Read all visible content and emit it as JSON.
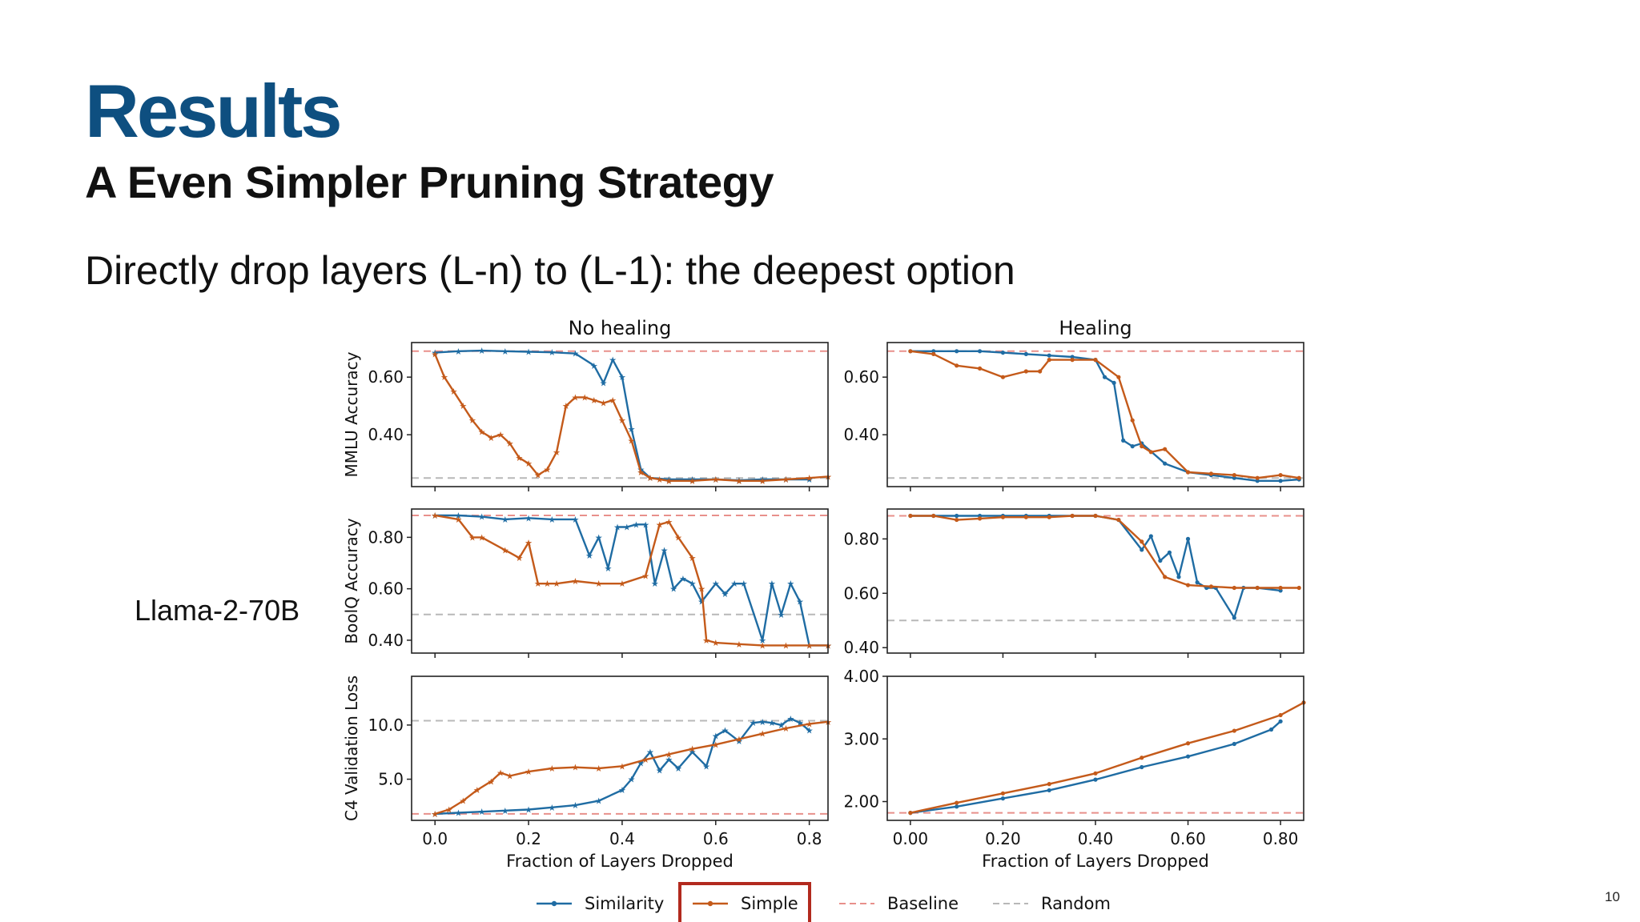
{
  "slide": {
    "title": "Results",
    "subtitle": "A Even Simpler Pruning Strategy",
    "bullet": "Directly drop layers (L-n) to (L-1): the deepest option",
    "model_label": "Llama-2-70B",
    "page_number": "10"
  },
  "colors": {
    "title": "#0e4f80",
    "similarity": "#1f6ca3",
    "simple": "#c45a1a",
    "baseline": "#e8908b",
    "random": "#b8b8b8",
    "highlight_box": "#b22a1e"
  },
  "chart_data": {
    "type": "line",
    "column_titles": [
      "No healing",
      "Healing"
    ],
    "row_ylabels": [
      "MMLU Accuracy",
      "BoolQ Accuracy",
      "C4 Validation Loss"
    ],
    "xlabel": "Fraction of Layers Dropped",
    "legend": [
      {
        "label": "Similarity",
        "style": "solid-marker",
        "color": "#1f6ca3"
      },
      {
        "label": "Simple",
        "style": "solid-marker",
        "color": "#c45a1a",
        "highlighted": true
      },
      {
        "label": "Baseline",
        "style": "dashed",
        "color": "#e8908b"
      },
      {
        "label": "Random",
        "style": "dashed",
        "color": "#b8b8b8"
      }
    ],
    "panels": [
      {
        "id": "mmlu-no-healing",
        "row": 0,
        "col": 0,
        "marker": "star",
        "xlim": [
          -0.05,
          0.84
        ],
        "ylim": [
          0.22,
          0.72
        ],
        "xticks": [
          0.0,
          0.2,
          0.4,
          0.6,
          0.8
        ],
        "xtick_labels": [
          "0.0",
          "0.2",
          "0.4",
          "0.6",
          "0.8"
        ],
        "yticks": [
          0.4,
          0.6
        ],
        "ytick_labels": [
          "0.40",
          "0.60"
        ],
        "baseline": 0.69,
        "random": 0.25,
        "series": [
          {
            "name": "Similarity",
            "x": [
              0.0,
              0.05,
              0.1,
              0.15,
              0.2,
              0.25,
              0.3,
              0.34,
              0.36,
              0.38,
              0.4,
              0.42,
              0.44,
              0.46,
              0.5,
              0.55,
              0.6,
              0.65,
              0.7,
              0.75,
              0.8
            ],
            "y": [
              0.685,
              0.69,
              0.692,
              0.69,
              0.688,
              0.686,
              0.682,
              0.64,
              0.58,
              0.66,
              0.6,
              0.42,
              0.28,
              0.25,
              0.245,
              0.245,
              0.245,
              0.242,
              0.245,
              0.245,
              0.245
            ]
          },
          {
            "name": "Simple",
            "x": [
              0.0,
              0.02,
              0.04,
              0.06,
              0.08,
              0.1,
              0.12,
              0.14,
              0.16,
              0.18,
              0.2,
              0.22,
              0.24,
              0.26,
              0.28,
              0.3,
              0.32,
              0.34,
              0.36,
              0.38,
              0.4,
              0.42,
              0.44,
              0.46,
              0.48,
              0.5,
              0.55,
              0.6,
              0.65,
              0.7,
              0.75,
              0.8,
              0.84
            ],
            "y": [
              0.68,
              0.6,
              0.55,
              0.5,
              0.45,
              0.41,
              0.39,
              0.4,
              0.37,
              0.32,
              0.3,
              0.26,
              0.28,
              0.34,
              0.5,
              0.53,
              0.53,
              0.52,
              0.51,
              0.52,
              0.45,
              0.38,
              0.27,
              0.25,
              0.245,
              0.24,
              0.24,
              0.245,
              0.24,
              0.24,
              0.245,
              0.25,
              0.255
            ]
          }
        ]
      },
      {
        "id": "mmlu-healing",
        "row": 0,
        "col": 1,
        "marker": "dot",
        "xlim": [
          -0.05,
          0.85
        ],
        "ylim": [
          0.22,
          0.72
        ],
        "xticks": [
          0.0,
          0.2,
          0.4,
          0.6,
          0.8
        ],
        "xtick_labels": [
          "0.00",
          "0.20",
          "0.40",
          "0.60",
          "0.80"
        ],
        "yticks": [
          0.4,
          0.6
        ],
        "ytick_labels": [
          "0.40",
          "0.60"
        ],
        "baseline": 0.69,
        "random": 0.25,
        "series": [
          {
            "name": "Similarity",
            "x": [
              0.0,
              0.05,
              0.1,
              0.15,
              0.2,
              0.25,
              0.3,
              0.35,
              0.4,
              0.42,
              0.44,
              0.46,
              0.48,
              0.5,
              0.55,
              0.6,
              0.65,
              0.7,
              0.75,
              0.8,
              0.84
            ],
            "y": [
              0.69,
              0.69,
              0.69,
              0.69,
              0.685,
              0.68,
              0.675,
              0.67,
              0.66,
              0.6,
              0.58,
              0.38,
              0.36,
              0.37,
              0.3,
              0.27,
              0.26,
              0.25,
              0.24,
              0.24,
              0.245
            ]
          },
          {
            "name": "Simple",
            "x": [
              0.0,
              0.05,
              0.1,
              0.15,
              0.2,
              0.25,
              0.28,
              0.3,
              0.35,
              0.4,
              0.45,
              0.48,
              0.5,
              0.52,
              0.55,
              0.6,
              0.65,
              0.7,
              0.75,
              0.8,
              0.84
            ],
            "y": [
              0.69,
              0.68,
              0.64,
              0.63,
              0.6,
              0.62,
              0.62,
              0.66,
              0.66,
              0.66,
              0.6,
              0.45,
              0.36,
              0.34,
              0.35,
              0.27,
              0.265,
              0.26,
              0.25,
              0.26,
              0.25
            ]
          }
        ]
      },
      {
        "id": "boolq-no-healing",
        "row": 1,
        "col": 0,
        "marker": "star",
        "xlim": [
          -0.05,
          0.84
        ],
        "ylim": [
          0.35,
          0.91
        ],
        "xticks": [
          0.0,
          0.2,
          0.4,
          0.6,
          0.8
        ],
        "xtick_labels": [
          "0.0",
          "0.2",
          "0.4",
          "0.6",
          "0.8"
        ],
        "yticks": [
          0.4,
          0.6,
          0.8
        ],
        "ytick_labels": [
          "0.40",
          "0.60",
          "0.80"
        ],
        "baseline": 0.885,
        "random": 0.5,
        "series": [
          {
            "name": "Similarity",
            "x": [
              0.0,
              0.05,
              0.1,
              0.15,
              0.2,
              0.25,
              0.3,
              0.33,
              0.35,
              0.37,
              0.39,
              0.41,
              0.43,
              0.45,
              0.47,
              0.49,
              0.51,
              0.53,
              0.55,
              0.57,
              0.6,
              0.62,
              0.64,
              0.66,
              0.7,
              0.72,
              0.74,
              0.76,
              0.78,
              0.8,
              0.84
            ],
            "y": [
              0.885,
              0.885,
              0.88,
              0.87,
              0.875,
              0.87,
              0.87,
              0.73,
              0.8,
              0.68,
              0.84,
              0.84,
              0.85,
              0.85,
              0.62,
              0.75,
              0.6,
              0.64,
              0.62,
              0.55,
              0.62,
              0.58,
              0.62,
              0.62,
              0.4,
              0.62,
              0.5,
              0.62,
              0.55,
              0.38,
              0.38
            ]
          },
          {
            "name": "Simple",
            "x": [
              0.0,
              0.05,
              0.08,
              0.1,
              0.15,
              0.18,
              0.2,
              0.22,
              0.24,
              0.26,
              0.3,
              0.35,
              0.4,
              0.45,
              0.48,
              0.5,
              0.52,
              0.55,
              0.57,
              0.58,
              0.6,
              0.65,
              0.7,
              0.75,
              0.8,
              0.84
            ],
            "y": [
              0.885,
              0.87,
              0.8,
              0.8,
              0.75,
              0.72,
              0.78,
              0.62,
              0.62,
              0.62,
              0.63,
              0.62,
              0.62,
              0.65,
              0.85,
              0.86,
              0.8,
              0.72,
              0.6,
              0.4,
              0.39,
              0.385,
              0.38,
              0.38,
              0.38,
              0.38
            ]
          }
        ]
      },
      {
        "id": "boolq-healing",
        "row": 1,
        "col": 1,
        "marker": "dot",
        "xlim": [
          -0.05,
          0.85
        ],
        "ylim": [
          0.38,
          0.91
        ],
        "xticks": [
          0.0,
          0.2,
          0.4,
          0.6,
          0.8
        ],
        "xtick_labels": [
          "0.00",
          "0.20",
          "0.40",
          "0.60",
          "0.80"
        ],
        "yticks": [
          0.4,
          0.6,
          0.8
        ],
        "ytick_labels": [
          "0.40",
          "0.60",
          "0.80"
        ],
        "baseline": 0.885,
        "random": 0.5,
        "series": [
          {
            "name": "Similarity",
            "x": [
              0.0,
              0.05,
              0.1,
              0.15,
              0.2,
              0.25,
              0.3,
              0.35,
              0.4,
              0.45,
              0.5,
              0.52,
              0.54,
              0.56,
              0.58,
              0.6,
              0.62,
              0.64,
              0.66,
              0.7,
              0.72,
              0.75,
              0.8
            ],
            "y": [
              0.885,
              0.885,
              0.885,
              0.885,
              0.885,
              0.885,
              0.885,
              0.885,
              0.885,
              0.87,
              0.76,
              0.81,
              0.72,
              0.75,
              0.66,
              0.8,
              0.64,
              0.62,
              0.62,
              0.51,
              0.62,
              0.62,
              0.61
            ]
          },
          {
            "name": "Simple",
            "x": [
              0.0,
              0.05,
              0.1,
              0.15,
              0.2,
              0.25,
              0.3,
              0.35,
              0.4,
              0.45,
              0.5,
              0.55,
              0.6,
              0.65,
              0.7,
              0.75,
              0.8,
              0.84
            ],
            "y": [
              0.885,
              0.885,
              0.87,
              0.875,
              0.88,
              0.88,
              0.88,
              0.885,
              0.885,
              0.87,
              0.79,
              0.66,
              0.63,
              0.625,
              0.62,
              0.62,
              0.62,
              0.62
            ]
          }
        ]
      },
      {
        "id": "c4-no-healing",
        "row": 2,
        "col": 0,
        "marker": "star",
        "xlim": [
          -0.05,
          0.84
        ],
        "ylim": [
          1.2,
          14.5
        ],
        "xticks": [
          0.0,
          0.2,
          0.4,
          0.6,
          0.8
        ],
        "xtick_labels": [
          "0.0",
          "0.2",
          "0.4",
          "0.6",
          "0.8"
        ],
        "yticks": [
          5.0,
          10.0
        ],
        "ytick_labels": [
          "5.0",
          "10.0"
        ],
        "baseline": 1.8,
        "random": 10.4,
        "series": [
          {
            "name": "Similarity",
            "x": [
              0.0,
              0.05,
              0.1,
              0.15,
              0.2,
              0.25,
              0.3,
              0.35,
              0.4,
              0.42,
              0.44,
              0.46,
              0.48,
              0.5,
              0.52,
              0.55,
              0.58,
              0.6,
              0.62,
              0.65,
              0.68,
              0.7,
              0.72,
              0.74,
              0.76,
              0.78,
              0.8
            ],
            "y": [
              1.8,
              1.9,
              2.0,
              2.1,
              2.2,
              2.4,
              2.6,
              3.0,
              4.0,
              5.0,
              6.5,
              7.5,
              5.8,
              6.8,
              6.0,
              7.5,
              6.2,
              9.0,
              9.5,
              8.5,
              10.2,
              10.3,
              10.2,
              10.0,
              10.6,
              10.2,
              9.5
            ]
          },
          {
            "name": "Simple",
            "x": [
              0.0,
              0.03,
              0.06,
              0.09,
              0.12,
              0.14,
              0.16,
              0.2,
              0.25,
              0.3,
              0.35,
              0.4,
              0.45,
              0.5,
              0.55,
              0.6,
              0.65,
              0.7,
              0.75,
              0.8,
              0.84
            ],
            "y": [
              1.8,
              2.2,
              3.0,
              4.0,
              4.8,
              5.6,
              5.3,
              5.7,
              6.0,
              6.1,
              6.0,
              6.2,
              6.8,
              7.3,
              7.8,
              8.2,
              8.7,
              9.2,
              9.7,
              10.1,
              10.3
            ]
          }
        ]
      },
      {
        "id": "c4-healing",
        "row": 2,
        "col": 1,
        "marker": "dot",
        "xlim": [
          -0.05,
          0.85
        ],
        "ylim": [
          1.7,
          4.0
        ],
        "xticks": [
          0.0,
          0.2,
          0.4,
          0.6,
          0.8
        ],
        "xtick_labels": [
          "0.00",
          "0.20",
          "0.40",
          "0.60",
          "0.80"
        ],
        "yticks": [
          2.0,
          3.0,
          4.0
        ],
        "ytick_labels": [
          "2.00",
          "3.00",
          "4.00"
        ],
        "baseline": 1.82,
        "random": null,
        "series": [
          {
            "name": "Similarity",
            "x": [
              0.0,
              0.1,
              0.2,
              0.3,
              0.4,
              0.5,
              0.6,
              0.7,
              0.78,
              0.8
            ],
            "y": [
              1.82,
              1.92,
              2.05,
              2.18,
              2.35,
              2.55,
              2.72,
              2.92,
              3.15,
              3.28
            ]
          },
          {
            "name": "Simple",
            "x": [
              0.0,
              0.1,
              0.2,
              0.3,
              0.4,
              0.5,
              0.6,
              0.7,
              0.8,
              0.85
            ],
            "y": [
              1.82,
              1.98,
              2.13,
              2.28,
              2.45,
              2.7,
              2.93,
              3.13,
              3.38,
              3.58
            ]
          }
        ]
      }
    ]
  }
}
